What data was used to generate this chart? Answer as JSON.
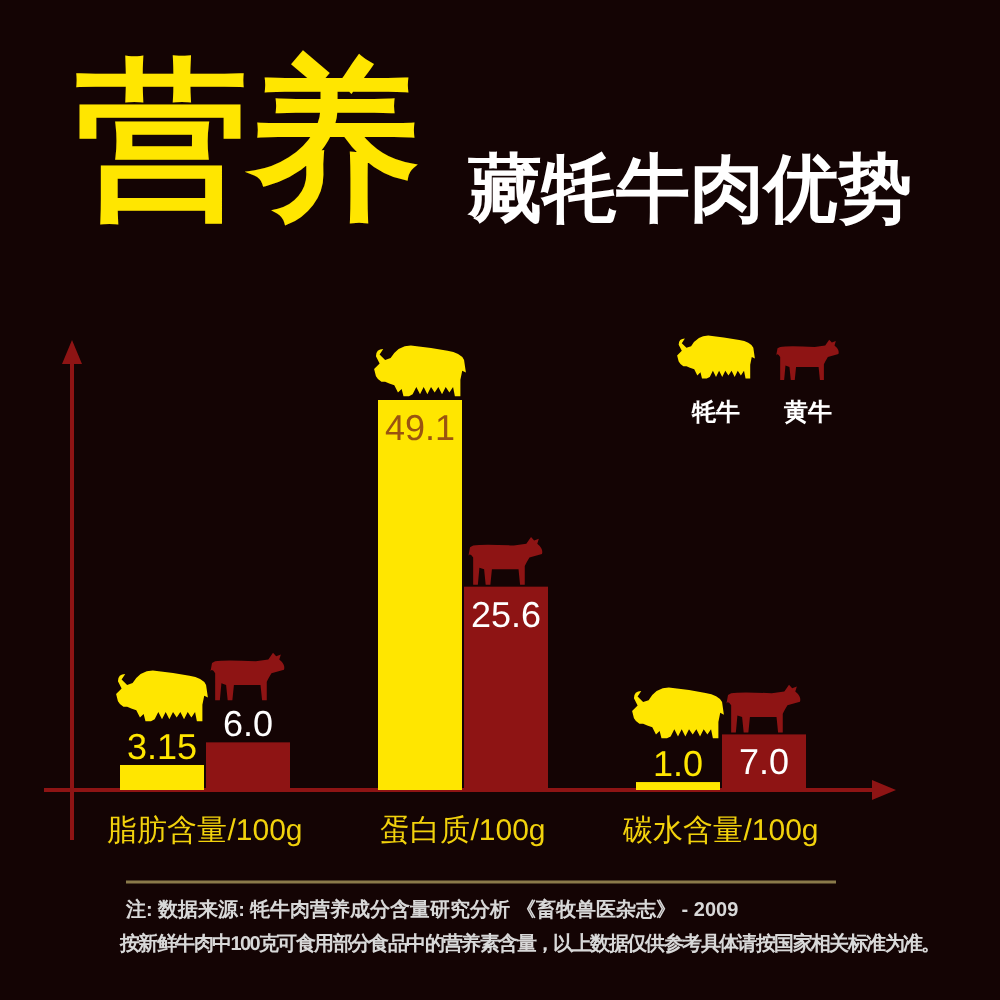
{
  "chart_data": {
    "type": "bar",
    "title": "营养",
    "subtitle": "藏牦牛肉优势",
    "categories": [
      "脂肪含量/100g",
      "蛋白质/100g",
      "碳水含量/100g"
    ],
    "series": [
      {
        "name": "牦牛",
        "color": "#ffe600",
        "values": [
          3.15,
          49.1,
          1.0
        ],
        "value_labels": [
          "3.15",
          "49.1",
          "1.0"
        ]
      },
      {
        "name": "黄牛",
        "color": "#8e1414",
        "values": [
          6.0,
          25.6,
          7.0
        ],
        "value_labels": [
          "6.0",
          "25.6",
          "7.0"
        ]
      }
    ],
    "legend": "top right",
    "annotations": [
      "注: 数据来源: 牦牛肉营养成分含量研究分析 《畜牧兽医杂志》 - 2009",
      "按新鲜牛肉中100克可食用部分食品中的营养素含量，以上数据仅供参考具体请按国家相关标准为准。"
    ]
  }
}
